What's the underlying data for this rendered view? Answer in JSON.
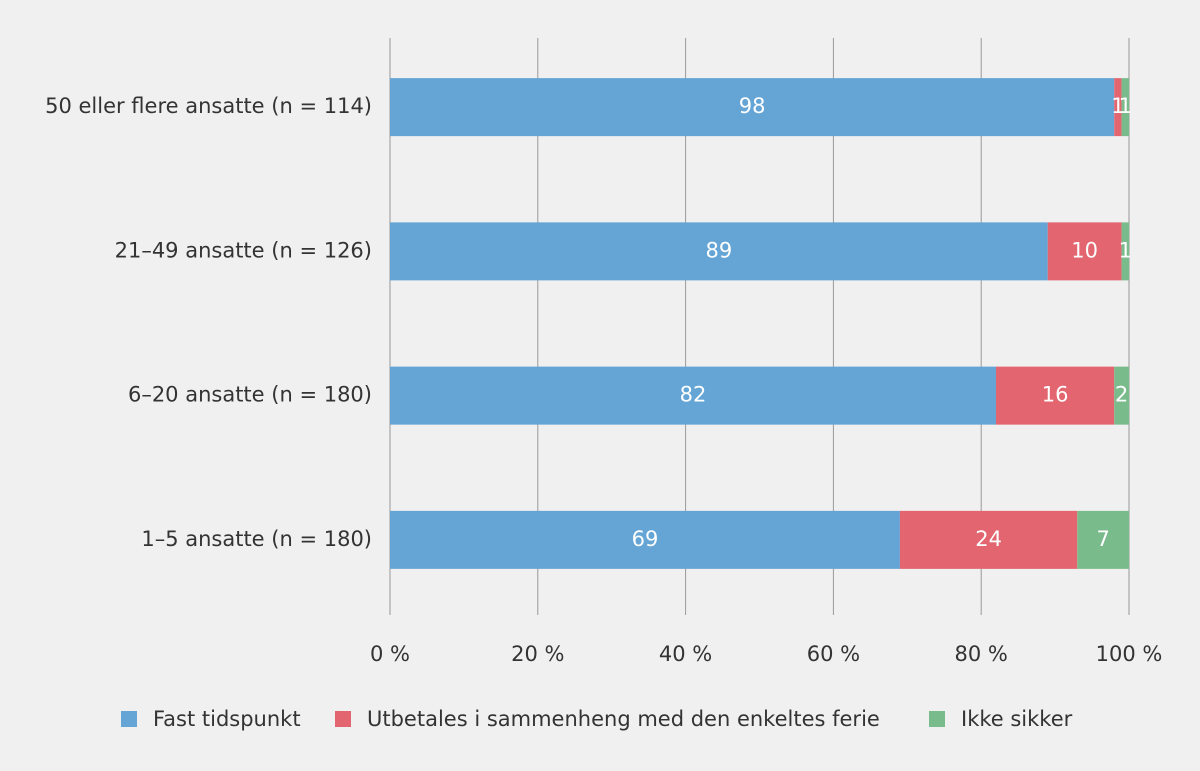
{
  "chart_data": {
    "type": "stacked-bar-horizontal",
    "categories": [
      "50 eller flere ansatte (n = 114)",
      "21–49 ansatte (n = 126)",
      "6–20 ansatte (n = 180)",
      "1–5 ansatte (n = 180)"
    ],
    "series": [
      {
        "name": "Fast tidspunkt",
        "color": "#64a5d6",
        "values": [
          98,
          89,
          82,
          69
        ]
      },
      {
        "name": "Utbetales i sammenheng med den enkeltes ferie",
        "color": "#e2656f",
        "values": [
          1,
          10,
          16,
          24
        ]
      },
      {
        "name": "Ikke sikker",
        "color": "#79bb8b",
        "values": [
          1,
          1,
          2,
          7
        ]
      }
    ],
    "xlim": [
      0,
      100
    ],
    "xticks": [
      {
        "value": 0,
        "label": "0 %"
      },
      {
        "value": 20,
        "label": "20 %"
      },
      {
        "value": 40,
        "label": "40 %"
      },
      {
        "value": 60,
        "label": "60 %"
      },
      {
        "value": 80,
        "label": "80 %"
      },
      {
        "value": 100,
        "label": "100 %"
      }
    ],
    "grid": true,
    "legend": "bottom"
  }
}
